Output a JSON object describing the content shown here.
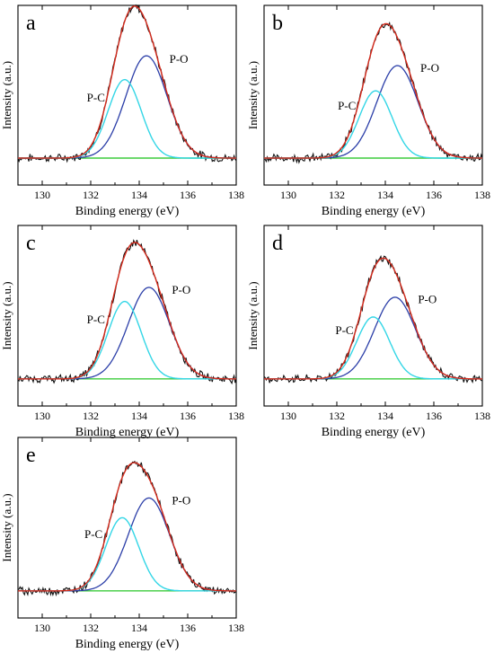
{
  "colors": {
    "measured": "#111111",
    "envelope": "#d42a1c",
    "p_o": "#2b3ea8",
    "p_c": "#33d6e6",
    "baseline": "#3dcc3d"
  },
  "chart_data": [
    {
      "type": "line",
      "panel_letter": "a",
      "xlabel": "Binding energy (eV)",
      "ylabel": "Intensity (a.u.)",
      "xlim": [
        129,
        138
      ],
      "xticks": [
        130,
        132,
        134,
        136,
        138
      ],
      "yticks": "none",
      "grid": false,
      "legend": "none",
      "annotations": [
        "P-C",
        "P-O"
      ],
      "series": [
        {
          "name": "P-C",
          "center": 133.4,
          "height": 0.56,
          "fwhm": 1.6
        },
        {
          "name": "P-O",
          "center": 134.3,
          "height": 0.73,
          "fwhm": 2.0
        }
      ],
      "baseline": 0.0
    },
    {
      "type": "line",
      "panel_letter": "b",
      "xlabel": "Binding energy (eV)",
      "ylabel": "Intensity (a.u.)",
      "xlim": [
        129,
        138
      ],
      "xticks": [
        130,
        132,
        134,
        136,
        138
      ],
      "yticks": "none",
      "grid": false,
      "legend": "none",
      "annotations": [
        "P-C",
        "P-O"
      ],
      "series": [
        {
          "name": "P-C",
          "center": 133.6,
          "height": 0.48,
          "fwhm": 1.6
        },
        {
          "name": "P-O",
          "center": 134.5,
          "height": 0.66,
          "fwhm": 2.0
        }
      ],
      "baseline": 0.0
    },
    {
      "type": "line",
      "panel_letter": "c",
      "xlabel": "Binding energy (eV)",
      "ylabel": "Intensity (a.u.)",
      "xlim": [
        129,
        138
      ],
      "xticks": [
        130,
        132,
        134,
        136,
        138
      ],
      "yticks": "none",
      "grid": false,
      "legend": "none",
      "annotations": [
        "P-C",
        "P-O"
      ],
      "series": [
        {
          "name": "P-C",
          "center": 133.4,
          "height": 0.55,
          "fwhm": 1.6
        },
        {
          "name": "P-O",
          "center": 134.4,
          "height": 0.65,
          "fwhm": 2.0
        }
      ],
      "baseline": 0.0
    },
    {
      "type": "line",
      "panel_letter": "d",
      "xlabel": "Binding energy (eV)",
      "ylabel": "Intensity (a.u.)",
      "xlim": [
        129,
        138
      ],
      "xticks": [
        130,
        132,
        134,
        136,
        138
      ],
      "yticks": "none",
      "grid": false,
      "legend": "none",
      "annotations": [
        "P-C",
        "P-O"
      ],
      "series": [
        {
          "name": "P-C",
          "center": 133.5,
          "height": 0.44,
          "fwhm": 1.6
        },
        {
          "name": "P-O",
          "center": 134.4,
          "height": 0.58,
          "fwhm": 2.0
        }
      ],
      "baseline": 0.0
    },
    {
      "type": "line",
      "panel_letter": "e",
      "xlabel": "Binding energy (eV)",
      "ylabel": "Intensity (a.u.)",
      "xlim": [
        129,
        138
      ],
      "xticks": [
        130,
        132,
        134,
        136,
        138
      ],
      "yticks": "none",
      "grid": false,
      "legend": "none",
      "annotations": [
        "P-C",
        "P-O"
      ],
      "series": [
        {
          "name": "P-C",
          "center": 133.3,
          "height": 0.52,
          "fwhm": 1.6
        },
        {
          "name": "P-O",
          "center": 134.4,
          "height": 0.66,
          "fwhm": 2.0
        }
      ],
      "baseline": 0.0
    }
  ]
}
